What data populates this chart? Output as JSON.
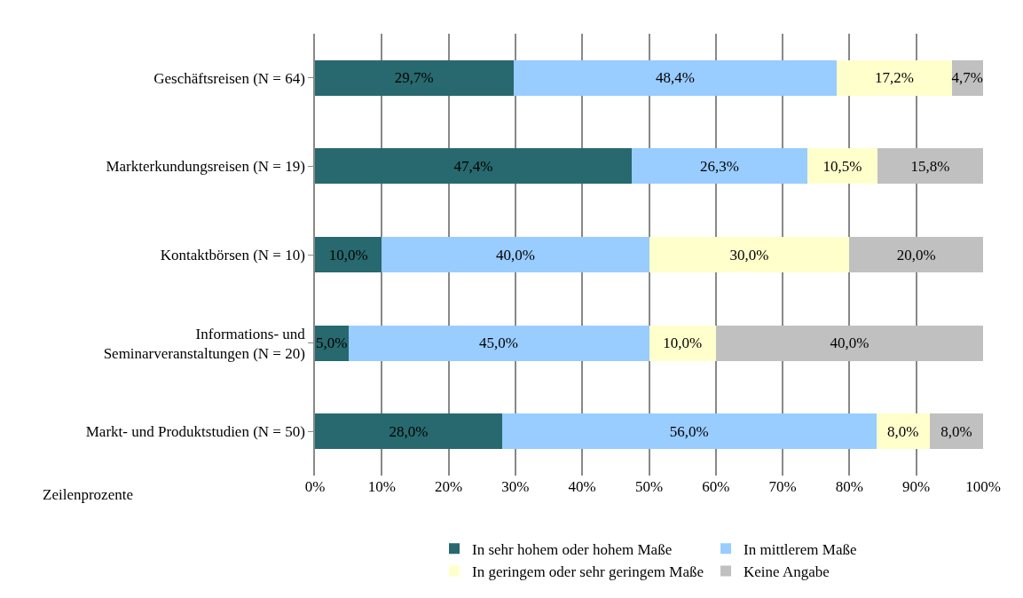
{
  "chart_data": {
    "type": "bar",
    "orientation": "horizontal",
    "stacked": true,
    "categories": [
      "Geschäftsreisen (N = 64)",
      "Markterkundungsreisen (N = 19)",
      "Kontaktbörsen (N = 10)",
      "Informations- und\nSeminarveranstaltungen (N = 20)",
      "Markt- und Produktstudien (N = 50)"
    ],
    "series": [
      {
        "name": "In sehr hohem oder hohem Maße",
        "color": "#27696f",
        "values": [
          29.7,
          47.4,
          10.0,
          5.0,
          28.0
        ],
        "value_labels": [
          "29,7%",
          "47,4%",
          "10,0%",
          "5,0%",
          "28,0%"
        ]
      },
      {
        "name": "In mittlerem Maße",
        "color": "#99ccff",
        "values": [
          48.4,
          26.3,
          40.0,
          45.0,
          56.0
        ],
        "value_labels": [
          "48,4%",
          "26,3%",
          "40,0%",
          "45,0%",
          "56,0%"
        ]
      },
      {
        "name": "In geringem oder sehr geringem Maße",
        "color": "#ffffcc",
        "values": [
          17.2,
          10.5,
          30.0,
          10.0,
          8.0
        ],
        "value_labels": [
          "17,2%",
          "10,5%",
          "30,0%",
          "10,0%",
          "8,0%"
        ]
      },
      {
        "name": "Keine Angabe",
        "color": "#c0c0c0",
        "values": [
          4.7,
          15.8,
          20.0,
          40.0,
          8.0
        ],
        "value_labels": [
          "4,7%",
          "15,8%",
          "20,0%",
          "40,0%",
          "8,0%"
        ]
      }
    ],
    "xlim": [
      0,
      100
    ],
    "xticks": [
      {
        "value": 0,
        "label": "0%"
      },
      {
        "value": 10,
        "label": "10%"
      },
      {
        "value": 20,
        "label": "20%"
      },
      {
        "value": 30,
        "label": "30%"
      },
      {
        "value": 40,
        "label": "40%"
      },
      {
        "value": 50,
        "label": "50%"
      },
      {
        "value": 60,
        "label": "60%"
      },
      {
        "value": 70,
        "label": "70%"
      },
      {
        "value": 80,
        "label": "80%"
      },
      {
        "value": 90,
        "label": "90%"
      },
      {
        "value": 100,
        "label": "100%"
      }
    ],
    "grid": "x",
    "legend": "bottom",
    "annotations": [
      "Zeilenprozente"
    ]
  }
}
